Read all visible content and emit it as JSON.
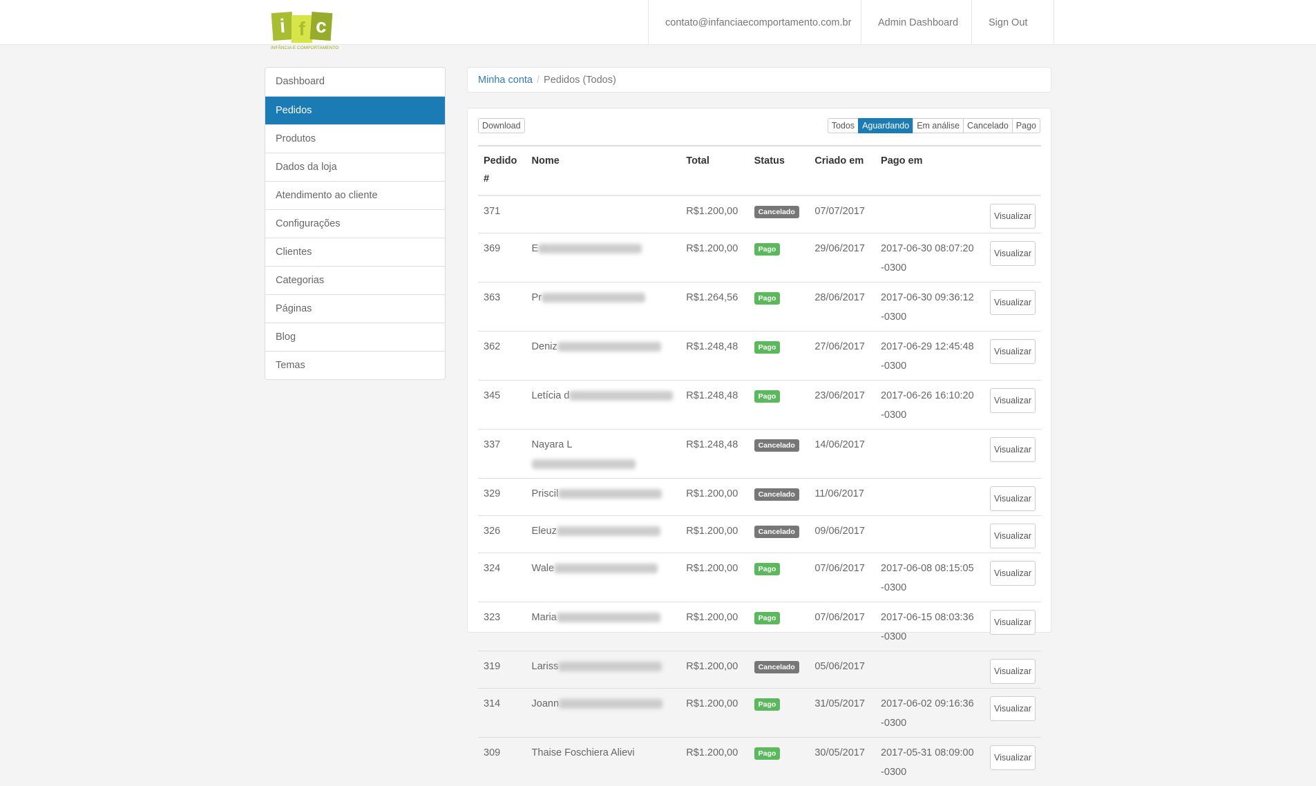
{
  "header": {
    "logo_letters": [
      "i",
      "f",
      "c"
    ],
    "logo_tagline": "INFÂNCIA E COMPORTAMENTO",
    "email": "contato@infanciaecomportamento.com.br",
    "admin": "Admin Dashboard",
    "signout": "Sign Out"
  },
  "sidebar": {
    "items": [
      {
        "label": "Dashboard"
      },
      {
        "label": "Pedidos",
        "active": true
      },
      {
        "label": "Produtos"
      },
      {
        "label": "Dados da loja"
      },
      {
        "label": "Atendimento ao cliente"
      },
      {
        "label": "Configurações"
      },
      {
        "label": "Clientes"
      },
      {
        "label": "Categorias"
      },
      {
        "label": "Páginas"
      },
      {
        "label": "Blog"
      },
      {
        "label": "Temas"
      }
    ]
  },
  "breadcrumb": {
    "parent": "Minha conta",
    "current": "Pedidos (Todos)"
  },
  "toolbar": {
    "download": "Download",
    "filters": [
      "Todos",
      "Aguardando",
      "Em análise",
      "Cancelado",
      "Pago"
    ],
    "active_filter": "Aguardando"
  },
  "colors": {
    "accent": "#1a7bb5",
    "pago": "#5cb85c",
    "cancelado": "#777777"
  },
  "table": {
    "headers": [
      "Pedido #",
      "Nome",
      "Total",
      "Status",
      "Criado em",
      "Pago em"
    ],
    "action": "Visualizar",
    "rows": [
      {
        "id": "371",
        "name": "",
        "blur": false,
        "total": "R$1.200,00",
        "status": "Cancelado",
        "created": "07/07/2017",
        "paid": ""
      },
      {
        "id": "369",
        "name": "E",
        "blur": true,
        "total": "R$1.200,00",
        "status": "Pago",
        "created": "29/06/2017",
        "paid": "2017-06-30 08:07:20 -0300"
      },
      {
        "id": "363",
        "name": "Pr",
        "blur": true,
        "total": "R$1.264,56",
        "status": "Pago",
        "created": "28/06/2017",
        "paid": "2017-06-30 09:36:12 -0300"
      },
      {
        "id": "362",
        "name": "Deniz",
        "blur": true,
        "total": "R$1.248,48",
        "status": "Pago",
        "created": "27/06/2017",
        "paid": "2017-06-29 12:45:48 -0300"
      },
      {
        "id": "345",
        "name": "Letícia d",
        "blur": true,
        "total": "R$1.248,48",
        "status": "Pago",
        "created": "23/06/2017",
        "paid": "2017-06-26 16:10:20 -0300"
      },
      {
        "id": "337",
        "name": "Nayara L",
        "blur": true,
        "total": "R$1.248,48",
        "status": "Cancelado",
        "created": "14/06/2017",
        "paid": ""
      },
      {
        "id": "329",
        "name": "Priscil",
        "blur": true,
        "total": "R$1.200,00",
        "status": "Cancelado",
        "created": "11/06/2017",
        "paid": ""
      },
      {
        "id": "326",
        "name": "Eleuz",
        "blur": true,
        "total": "R$1.200,00",
        "status": "Cancelado",
        "created": "09/06/2017",
        "paid": ""
      },
      {
        "id": "324",
        "name": "Wale",
        "blur": true,
        "total": "R$1.200,00",
        "status": "Pago",
        "created": "07/06/2017",
        "paid": "2017-06-08 08:15:05 -0300"
      },
      {
        "id": "323",
        "name": "Maria",
        "blur": true,
        "total": "R$1.200,00",
        "status": "Pago",
        "created": "07/06/2017",
        "paid": "2017-06-15 08:03:36 -0300"
      },
      {
        "id": "319",
        "name": "Lariss",
        "blur": true,
        "total": "R$1.200,00",
        "status": "Cancelado",
        "created": "05/06/2017",
        "paid": ""
      },
      {
        "id": "314",
        "name": "Joann",
        "blur": true,
        "total": "R$1.200,00",
        "status": "Pago",
        "created": "31/05/2017",
        "paid": "2017-06-02 09:16:36 -0300"
      },
      {
        "id": "309",
        "name": "Thaise Foschiera Alievi",
        "blur": false,
        "total": "R$1.200,00",
        "status": "Pago",
        "created": "30/05/2017",
        "paid": "2017-05-31 08:09:00 -0300"
      }
    ]
  }
}
